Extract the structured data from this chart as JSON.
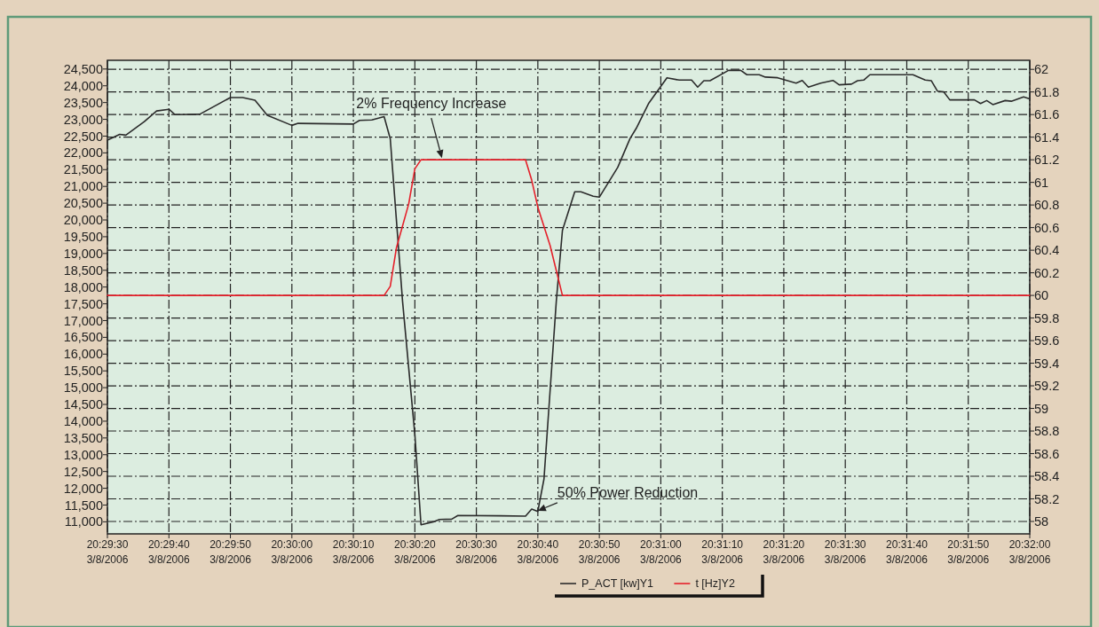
{
  "chart_data": {
    "type": "line",
    "xlim": [
      "2006-03-08T20:29:30",
      "2006-03-08T20:32:00"
    ],
    "xticks": [
      {
        "value": "2006-03-08T20:29:30",
        "label": "20:29:30 3/8/2006"
      },
      {
        "value": "2006-03-08T20:29:40",
        "label": "20:29:40 3/8/2006"
      },
      {
        "value": "2006-03-08T20:29:50",
        "label": "20:29:50 3/8/2006"
      },
      {
        "value": "2006-03-08T20:30:00",
        "label": "20:30:00 3/8/2006"
      },
      {
        "value": "2006-03-08T20:30:10",
        "label": "20:30:10 3/8/2006"
      },
      {
        "value": "2006-03-08T20:30:20",
        "label": "20:30:20 3/8/2006"
      },
      {
        "value": "2006-03-08T20:30:30",
        "label": "20:30:30 3/8/2006"
      },
      {
        "value": "2006-03-08T20:30:40",
        "label": "20:30:40 3/8/2006"
      },
      {
        "value": "2006-03-08T20:30:50",
        "label": "20:30:50 3/8/2006"
      },
      {
        "value": "2006-03-08T20:31:00",
        "label": "20:31:00 3/8/2006"
      },
      {
        "value": "2006-03-08T20:31:10",
        "label": "20:31:10 3/8/2006"
      },
      {
        "value": "2006-03-08T20:31:20",
        "label": "20:31:20 3/8/2006"
      },
      {
        "value": "2006-03-08T20:31:30",
        "label": "20:31:30 3/8/2006"
      },
      {
        "value": "2006-03-08T20:31:40",
        "label": "20:31:40 3/8/2006"
      },
      {
        "value": "2006-03-08T20:31:50",
        "label": "20:31:50 3/8/2006"
      },
      {
        "value": "2006-03-08T20:32:00",
        "label": "20:32:00 3/8/2006"
      }
    ],
    "ylim": [
      10640,
      24760
    ],
    "yticks": [
      {
        "value": 11000,
        "label": "11,000"
      },
      {
        "value": 11500,
        "label": "11,500"
      },
      {
        "value": 12000,
        "label": "12,000"
      },
      {
        "value": 12500,
        "label": "12,500"
      },
      {
        "value": 13000,
        "label": "13,000"
      },
      {
        "value": 13500,
        "label": "13,500"
      },
      {
        "value": 14000,
        "label": "14,000"
      },
      {
        "value": 14500,
        "label": "14,500"
      },
      {
        "value": 15000,
        "label": "15,000"
      },
      {
        "value": 15500,
        "label": "15,500"
      },
      {
        "value": 16000,
        "label": "16,000"
      },
      {
        "value": 16500,
        "label": "16,500"
      },
      {
        "value": 17000,
        "label": "17,000"
      },
      {
        "value": 17500,
        "label": "17,500"
      },
      {
        "value": 18000,
        "label": "18,000"
      },
      {
        "value": 18500,
        "label": "18,500"
      },
      {
        "value": 19000,
        "label": "19,000"
      },
      {
        "value": 19500,
        "label": "19,500"
      },
      {
        "value": 20000,
        "label": "20,000"
      },
      {
        "value": 20500,
        "label": "20,500"
      },
      {
        "value": 21000,
        "label": "21,000"
      },
      {
        "value": 21500,
        "label": "21,500"
      },
      {
        "value": 22000,
        "label": "22,000"
      },
      {
        "value": 22500,
        "label": "22,500"
      },
      {
        "value": 23000,
        "label": "23,000"
      },
      {
        "value": 23500,
        "label": "23,500"
      },
      {
        "value": 24000,
        "label": "24,000"
      },
      {
        "value": 24500,
        "label": "24,500"
      }
    ],
    "y2lim": [
      57.89,
      62.08
    ],
    "y2ticks": [
      58,
      58.2,
      58.4,
      58.6,
      58.8,
      59,
      59.2,
      59.4,
      59.6,
      59.8,
      60,
      60.2,
      60.4,
      60.6,
      60.8,
      61,
      61.2,
      61.4,
      61.6,
      61.8,
      62
    ],
    "grid": true,
    "legend": "bottom",
    "line_style": "solid",
    "marker": "none",
    "annotations": [
      "2% Frequency Increase",
      {
        "text": "50% Power Reduction",
        "x": "2006-03-08T20:30:40",
        "y": 11330
      }
    ],
    "series": [
      {
        "name": "P_ACT [kw]Y1",
        "color": "#2b2b2b",
        "x": [
          "2006-03-08T20:29:30",
          "2006-03-08T20:29:32",
          "2006-03-08T20:29:33",
          "2006-03-08T20:29:36",
          "2006-03-08T20:29:38",
          "2006-03-08T20:29:40",
          "2006-03-08T20:29:41",
          "2006-03-08T20:29:45",
          "2006-03-08T20:29:50",
          "2006-03-08T20:29:52",
          "2006-03-08T20:29:54",
          "2006-03-08T20:29:56",
          "2006-03-08T20:30:00",
          "2006-03-08T20:30:01",
          "2006-03-08T20:30:10",
          "2006-03-08T20:30:11",
          "2006-03-08T20:30:13",
          "2006-03-08T20:30:15",
          "2006-03-08T20:30:16",
          "2006-03-08T20:30:18",
          "2006-03-08T20:30:20",
          "2006-03-08T20:30:21",
          "2006-03-08T20:30:23",
          "2006-03-08T20:30:24",
          "2006-03-08T20:30:26",
          "2006-03-08T20:30:27",
          "2006-03-08T20:30:34",
          "2006-03-08T20:30:38",
          "2006-03-08T20:30:39",
          "2006-03-08T20:30:40",
          "2006-03-08T20:30:41",
          "2006-03-08T20:30:43",
          "2006-03-08T20:30:44",
          "2006-03-08T20:30:46",
          "2006-03-08T20:30:47",
          "2006-03-08T20:30:49",
          "2006-03-08T20:30:50",
          "2006-03-08T20:30:53",
          "2006-03-08T20:30:55",
          "2006-03-08T20:30:56",
          "2006-03-08T20:30:58",
          "2006-03-08T20:31:01",
          "2006-03-08T20:31:03",
          "2006-03-08T20:31:05",
          "2006-03-08T20:31:06",
          "2006-03-08T20:31:07",
          "2006-03-08T20:31:08",
          "2006-03-08T20:31:11",
          "2006-03-08T20:31:13",
          "2006-03-08T20:31:14",
          "2006-03-08T20:31:16",
          "2006-03-08T20:31:17",
          "2006-03-08T20:31:19",
          "2006-03-08T20:31:22",
          "2006-03-08T20:31:23",
          "2006-03-08T20:31:24",
          "2006-03-08T20:31:26",
          "2006-03-08T20:31:28",
          "2006-03-08T20:31:29",
          "2006-03-08T20:31:31",
          "2006-03-08T20:31:32",
          "2006-03-08T20:31:33",
          "2006-03-08T20:31:34",
          "2006-03-08T20:31:41",
          "2006-03-08T20:31:43",
          "2006-03-08T20:31:44",
          "2006-03-08T20:31:45",
          "2006-03-08T20:31:46",
          "2006-03-08T20:31:47",
          "2006-03-08T20:31:51",
          "2006-03-08T20:31:52",
          "2006-03-08T20:31:53",
          "2006-03-08T20:31:54",
          "2006-03-08T20:31:56",
          "2006-03-08T20:31:57",
          "2006-03-08T20:31:59",
          "2006-03-08T20:32:00"
        ],
        "values": [
          22380,
          22550,
          22530,
          22930,
          23250,
          23300,
          23140,
          23150,
          23650,
          23650,
          23570,
          23120,
          22820,
          22880,
          22860,
          22970,
          22980,
          23080,
          22420,
          17570,
          13600,
          10910,
          11000,
          11070,
          11080,
          11190,
          11180,
          11170,
          11380,
          11310,
          12280,
          17570,
          19690,
          20840,
          20840,
          20710,
          20680,
          21570,
          22430,
          22730,
          23470,
          24240,
          24170,
          24170,
          23960,
          24150,
          24150,
          24460,
          24460,
          24330,
          24330,
          24260,
          24240,
          24080,
          24160,
          23960,
          24080,
          24160,
          24030,
          24050,
          24150,
          24170,
          24330,
          24330,
          24170,
          24150,
          23840,
          23820,
          23580,
          23580,
          23470,
          23560,
          23440,
          23560,
          23540,
          23670,
          23610
        ]
      },
      {
        "name": "t [Hz]Y2",
        "color": "#e5202a",
        "axis": "y2",
        "x": [
          "2006-03-08T20:29:30",
          "2006-03-08T20:30:15",
          "2006-03-08T20:30:16",
          "2006-03-08T20:30:17",
          "2006-03-08T20:30:19",
          "2006-03-08T20:30:20",
          "2006-03-08T20:30:21",
          "2006-03-08T20:30:38",
          "2006-03-08T20:30:39",
          "2006-03-08T20:30:40",
          "2006-03-08T20:30:42",
          "2006-03-08T20:30:44",
          "2006-03-08T20:32:00"
        ],
        "values": [
          60,
          60,
          60.08,
          60.42,
          60.81,
          61.12,
          61.2,
          61.2,
          61.02,
          60.78,
          60.44,
          60,
          60
        ]
      }
    ]
  }
}
